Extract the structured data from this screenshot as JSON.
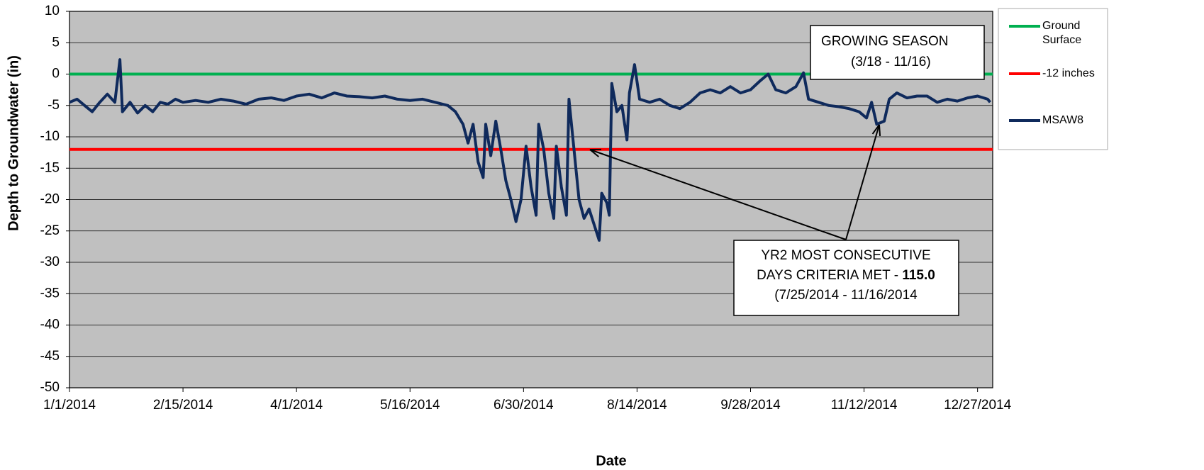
{
  "chart_data": {
    "type": "line",
    "x_label": "Date",
    "y_label": "Depth to Groundwater (in)",
    "xlim": [
      "1/1/2014",
      "1/2/2015"
    ],
    "xticks": [
      "1/1/2014",
      "2/15/2014",
      "4/1/2014",
      "5/16/2014",
      "6/30/2014",
      "8/14/2014",
      "9/28/2014",
      "11/12/2014",
      "12/27/2014"
    ],
    "ylim": [
      -50,
      10
    ],
    "yticks": [
      10,
      5,
      0,
      -5,
      -10,
      -15,
      -20,
      -25,
      -30,
      -35,
      -40,
      -45,
      -50
    ],
    "grid": true,
    "legend": "right",
    "series": [
      {
        "name": "Ground Surface",
        "color": "#00b050",
        "x": [
          "1/1/2014",
          "1/2/2015"
        ],
        "values": [
          0,
          0
        ]
      },
      {
        "name": "-12 inches",
        "color": "#ff0000",
        "x": [
          "1/1/2014",
          "1/2/2015"
        ],
        "values": [
          -12,
          -12
        ]
      },
      {
        "name": "MSAW8",
        "color": "#0f2a5c",
        "x": [
          "1/1/2014",
          "1/4/2014",
          "1/7/2014",
          "1/10/2014",
          "1/13/2014",
          "1/16/2014",
          "1/19/2014",
          "1/21/2014",
          "1/22/2014",
          "1/25/2014",
          "1/28/2014",
          "1/31/2014",
          "2/3/2014",
          "2/6/2014",
          "2/9/2014",
          "2/12/2014",
          "2/15/2014",
          "2/20/2014",
          "2/25/2014",
          "3/2/2014",
          "3/7/2014",
          "3/12/2014",
          "3/17/2014",
          "3/22/2014",
          "3/27/2014",
          "4/1/2014",
          "4/6/2014",
          "4/11/2014",
          "4/16/2014",
          "4/21/2014",
          "4/26/2014",
          "5/1/2014",
          "5/6/2014",
          "5/11/2014",
          "5/16/2014",
          "5/21/2014",
          "5/26/2014",
          "5/31/2014",
          "6/3/2014",
          "6/6/2014",
          "6/8/2014",
          "6/10/2014",
          "6/12/2014",
          "6/14/2014",
          "6/15/2014",
          "6/17/2014",
          "6/19/2014",
          "6/21/2014",
          "6/23/2014",
          "6/25/2014",
          "6/27/2014",
          "6/29/2014",
          "7/1/2014",
          "7/3/2014",
          "7/5/2014",
          "7/6/2014",
          "7/8/2014",
          "7/10/2014",
          "7/12/2014",
          "7/13/2014",
          "7/15/2014",
          "7/17/2014",
          "7/18/2014",
          "7/20/2014",
          "7/22/2014",
          "7/24/2014",
          "7/26/2014",
          "7/28/2014",
          "7/30/2014",
          "7/31/2014",
          "8/2/2014",
          "8/3/2014",
          "8/4/2014",
          "8/6/2014",
          "8/8/2014",
          "8/10/2014",
          "8/11/2014",
          "8/13/2014",
          "8/15/2014",
          "8/19/2014",
          "8/23/2014",
          "8/27/2014",
          "8/31/2014",
          "9/4/2014",
          "9/8/2014",
          "9/12/2014",
          "9/16/2014",
          "9/20/2014",
          "9/24/2014",
          "9/28/2014",
          "10/2/2014",
          "10/5/2014",
          "10/8/2014",
          "10/12/2014",
          "10/16/2014",
          "10/19/2014",
          "10/21/2014",
          "10/25/2014",
          "10/29/2014",
          "11/2/2014",
          "11/6/2014",
          "11/10/2014",
          "11/13/2014",
          "11/15/2014",
          "11/17/2014",
          "11/20/2014",
          "11/22/2014",
          "11/25/2014",
          "11/29/2014",
          "12/3/2014",
          "12/7/2014",
          "12/11/2014",
          "12/15/2014",
          "12/19/2014",
          "12/23/2014",
          "12/27/2014",
          "12/31/2014",
          "1/1/2015"
        ],
        "values": [
          -4.5,
          -4.0,
          -5.0,
          -6.0,
          -4.5,
          -3.2,
          -4.5,
          2.3,
          -6.0,
          -4.5,
          -6.2,
          -5.0,
          -6.0,
          -4.5,
          -4.8,
          -4.0,
          -4.5,
          -4.2,
          -4.5,
          -4.0,
          -4.3,
          -4.8,
          -4.0,
          -3.8,
          -4.2,
          -3.5,
          -3.2,
          -3.8,
          -3.0,
          -3.5,
          -3.6,
          -3.8,
          -3.5,
          -4.0,
          -4.2,
          -4.0,
          -4.5,
          -5.0,
          -6.0,
          -8.0,
          -11.0,
          -8.0,
          -14.0,
          -16.5,
          -8.0,
          -13.0,
          -7.5,
          -12.0,
          -17.0,
          -20.0,
          -23.5,
          -20.0,
          -11.5,
          -18.0,
          -22.5,
          -8.0,
          -12.0,
          -19.0,
          -23.0,
          -11.5,
          -18.0,
          -22.5,
          -4.0,
          -12.0,
          -20.0,
          -23.0,
          -21.5,
          -24.0,
          -26.5,
          -19.0,
          -20.5,
          -22.5,
          -1.5,
          -6.0,
          -5.0,
          -10.5,
          -3.0,
          1.5,
          -4.0,
          -4.5,
          -4.0,
          -5.0,
          -5.5,
          -4.5,
          -3.0,
          -2.5,
          -3.0,
          -2.0,
          -3.0,
          -2.5,
          -1.0,
          0.0,
          -2.5,
          -3.0,
          -2.0,
          0.2,
          -4.0,
          -4.5,
          -5.0,
          -5.2,
          -5.5,
          -6.0,
          -7.0,
          -4.5,
          -8.0,
          -7.5,
          -4.0,
          -3.0,
          -3.8,
          -3.5,
          -3.5,
          -4.5,
          -4.0,
          -4.3,
          -3.8,
          -3.5,
          -4.0,
          -4.5
        ]
      }
    ],
    "annotations": [
      {
        "lines": [
          "GROWING SEASON",
          "(3/18 - 11/16)"
        ]
      },
      {
        "lines": [
          "YR2 MOST CONSECUTIVE",
          "DAYS CRITERIA MET - ",
          "115.0",
          "(7/25/2014 - 11/16/2014"
        ]
      }
    ]
  }
}
